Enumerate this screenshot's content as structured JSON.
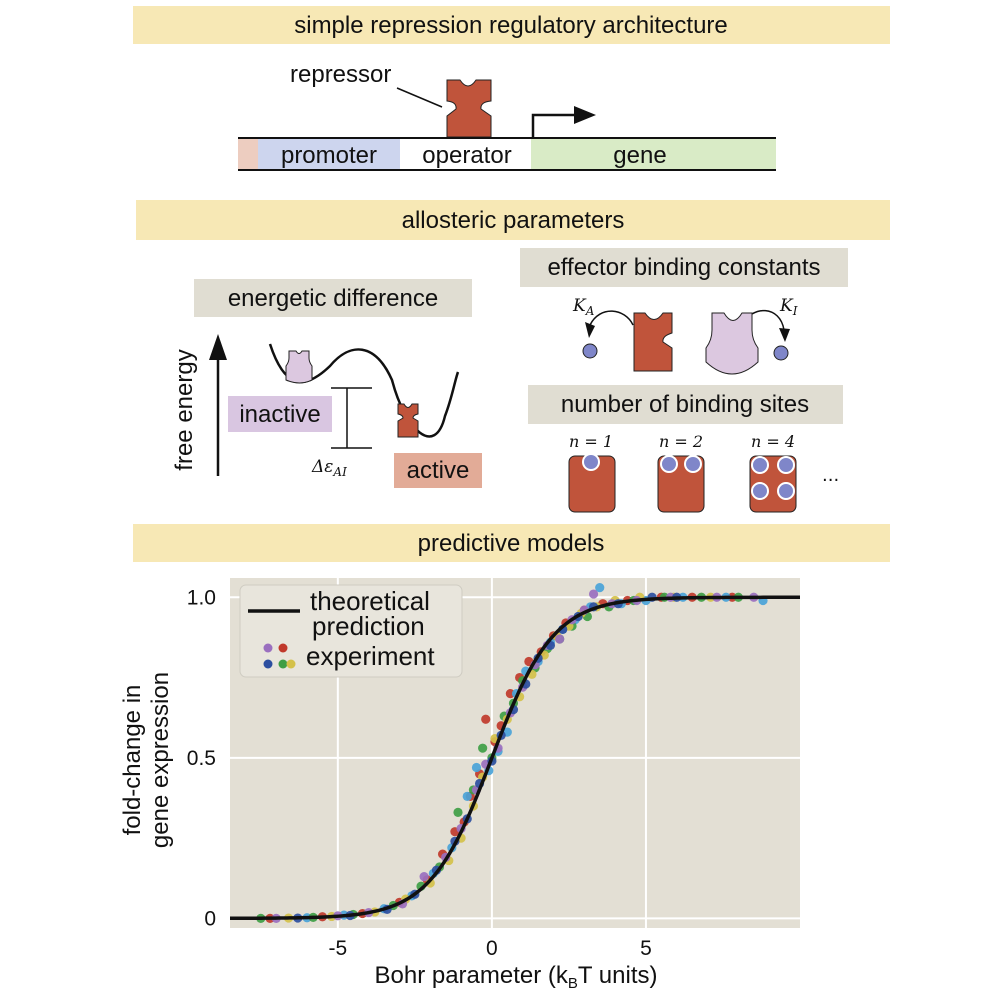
{
  "sections": {
    "architecture": "simple repression regulatory architecture",
    "allosteric": "allosteric parameters",
    "predictive": "predictive models"
  },
  "architecture": {
    "repressor_label": "repressor",
    "promoter_label": "promoter",
    "operator_label": "operator",
    "gene_label": "gene"
  },
  "energetics": {
    "title": "energetic difference",
    "y_axis": "free energy",
    "inactive_label": "inactive",
    "active_label": "active",
    "delta_label": "Δε",
    "delta_sub": "AI"
  },
  "effector": {
    "title": "effector binding constants",
    "ka": "K",
    "ka_sub": "A",
    "ki": "K",
    "ki_sub": "I"
  },
  "binding_sites": {
    "title": "number of binding sites",
    "n_labels": [
      "n = 1",
      "n = 2",
      "n = 4"
    ],
    "ellipsis": "···"
  },
  "colors": {
    "banner": "#f7e8b5",
    "repressor": "#c0543b",
    "inactive_repressor": "#dcc8e0",
    "effector": "#7f86c9",
    "promoter_bg": "#cdd5ee",
    "gene_bg": "#d9ebc6",
    "inactive_bg": "#d9c6e1",
    "active_bg": "#e2ab97",
    "plot_bg": "#e3dfd4"
  },
  "chart_data": {
    "type": "scatter",
    "xlabel": "Bohr parameter (k",
    "xlabel_sub": "B",
    "xlabel_tail": "T units)",
    "ylabel_line1": "fold-change in",
    "ylabel_line2": "gene expression",
    "xlim": [
      -8.5,
      10
    ],
    "ylim": [
      -0.03,
      1.06
    ],
    "xticks": [
      -5,
      0,
      5
    ],
    "xtick_labels": [
      "-5",
      "0",
      "5"
    ],
    "yticks": [
      0,
      0.5,
      1.0
    ],
    "ytick_labels": [
      "0",
      "0.5",
      "1.0"
    ],
    "grid": true,
    "legend_position": "top-left",
    "legend": [
      "theoretical",
      "prediction",
      "experiment"
    ],
    "theory": "fold-change = 1 / (1 + exp(-F))",
    "series": [
      {
        "color": "#c0392b",
        "x": [
          -7.2,
          -5.5,
          -4.2,
          -3.0,
          -2.1,
          -1.6,
          -1.2,
          -0.9,
          -0.7,
          -0.4,
          -0.2,
          0.1,
          0.3,
          0.6,
          0.9,
          1.2,
          1.6,
          2.0,
          2.4,
          3.0,
          3.6,
          4.4,
          5.5,
          6.5,
          7.8
        ],
        "y": [
          0.0,
          0.005,
          0.015,
          0.05,
          0.12,
          0.2,
          0.27,
          0.3,
          0.38,
          0.45,
          0.62,
          0.55,
          0.6,
          0.7,
          0.75,
          0.8,
          0.83,
          0.88,
          0.92,
          0.96,
          0.98,
          0.99,
          1.0,
          1.0,
          1.0
        ]
      },
      {
        "color": "#4aa3d8",
        "x": [
          -6.0,
          -4.8,
          -3.5,
          -2.6,
          -1.9,
          -1.3,
          -0.8,
          -0.5,
          -0.1,
          0.2,
          0.5,
          0.8,
          1.1,
          1.5,
          1.9,
          2.3,
          2.7,
          3.2,
          3.5,
          4.2,
          5.0,
          6.2,
          7.6,
          8.8
        ],
        "y": [
          0.002,
          0.01,
          0.03,
          0.07,
          0.14,
          0.22,
          0.38,
          0.47,
          0.46,
          0.52,
          0.58,
          0.7,
          0.77,
          0.8,
          0.86,
          0.9,
          0.93,
          0.97,
          1.03,
          0.98,
          0.99,
          1.0,
          1.0,
          0.99
        ]
      },
      {
        "color": "#3f9e45",
        "x": [
          -7.5,
          -5.8,
          -4.5,
          -3.2,
          -2.3,
          -1.7,
          -1.1,
          -0.6,
          -0.3,
          0.0,
          0.4,
          0.7,
          1.0,
          1.4,
          1.8,
          2.2,
          2.6,
          3.1,
          3.8,
          4.6,
          5.6,
          6.8,
          8.0
        ],
        "y": [
          0.0,
          0.003,
          0.012,
          0.04,
          0.1,
          0.16,
          0.33,
          0.4,
          0.53,
          0.5,
          0.63,
          0.67,
          0.74,
          0.78,
          0.84,
          0.87,
          0.91,
          0.94,
          0.97,
          0.99,
          1.0,
          1.0,
          1.0
        ]
      },
      {
        "color": "#d4c14a",
        "x": [
          -6.6,
          -5.2,
          -3.8,
          -2.8,
          -2.0,
          -1.4,
          -1.0,
          -0.6,
          -0.3,
          0.1,
          0.5,
          0.9,
          1.3,
          1.7,
          2.1,
          2.5,
          2.9,
          3.4,
          4.0,
          4.8,
          5.9,
          7.1
        ],
        "y": [
          0.001,
          0.006,
          0.02,
          0.06,
          0.11,
          0.18,
          0.25,
          0.35,
          0.44,
          0.56,
          0.62,
          0.69,
          0.76,
          0.82,
          0.88,
          0.91,
          0.95,
          0.97,
          0.99,
          1.0,
          1.0,
          1.0
        ]
      },
      {
        "color": "#9a6fbf",
        "x": [
          -7.0,
          -5.0,
          -4.0,
          -2.9,
          -2.2,
          -1.5,
          -1.0,
          -0.5,
          -0.2,
          0.2,
          0.6,
          1.0,
          1.4,
          1.8,
          2.2,
          2.6,
          3.0,
          3.3,
          3.9,
          4.7,
          5.8,
          7.3,
          8.5
        ],
        "y": [
          0.0,
          0.008,
          0.018,
          0.045,
          0.13,
          0.19,
          0.28,
          0.4,
          0.48,
          0.53,
          0.64,
          0.72,
          0.79,
          0.85,
          0.87,
          0.93,
          0.96,
          1.01,
          0.98,
          0.99,
          1.0,
          1.0,
          1.0
        ]
      },
      {
        "color": "#2c4fa0",
        "x": [
          -6.3,
          -4.6,
          -3.4,
          -2.5,
          -1.8,
          -1.2,
          -0.8,
          -0.4,
          0.0,
          0.3,
          0.7,
          1.1,
          1.5,
          1.9,
          2.3,
          2.8,
          3.3,
          4.1,
          5.2,
          6.0
        ],
        "y": [
          0.001,
          0.009,
          0.028,
          0.075,
          0.15,
          0.24,
          0.31,
          0.42,
          0.49,
          0.57,
          0.65,
          0.73,
          0.81,
          0.85,
          0.9,
          0.94,
          0.97,
          0.98,
          1.0,
          1.0
        ]
      }
    ]
  }
}
